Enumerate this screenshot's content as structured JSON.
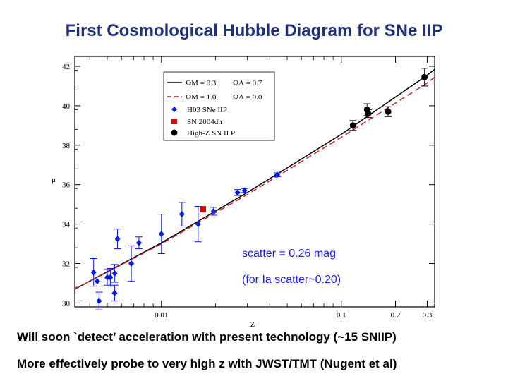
{
  "slide": {
    "title": "First Cosmological Hubble Diagram for SNe IIP",
    "bullets": [
      "Will soon `detect’ acceleration with present technology (~15 SNIIP)",
      "More effectively probe to very high z with JWST/TMT (Nugent et al)"
    ]
  },
  "chart_data": {
    "type": "scatter",
    "title": "",
    "xlabel": "z",
    "ylabel": "μ",
    "x_scale": "log",
    "xlim": [
      0.0033,
      0.33
    ],
    "ylim": [
      29.8,
      42.5
    ],
    "x_ticks": [
      0.01,
      0.1,
      0.2,
      0.3
    ],
    "y_ticks": [
      30,
      32,
      34,
      36,
      38,
      40,
      42
    ],
    "grid": false,
    "legend_position": "top-left",
    "annotations": [
      "scatter = 0.26 mag",
      "(for Ia scatter~0.20)"
    ],
    "lines": [
      {
        "label_omega_m": "ΩM = 0.3,",
        "label_omega_l": "ΩΛ = 0.7",
        "color": "#000000",
        "dash": "solid",
        "points": [
          [
            0.0033,
            30.7
          ],
          [
            0.01,
            33.05
          ],
          [
            0.03,
            35.6
          ],
          [
            0.1,
            38.55
          ],
          [
            0.3,
            41.55
          ],
          [
            0.33,
            41.85
          ]
        ]
      },
      {
        "label_omega_m": "ΩM = 1.0,",
        "label_omega_l": "ΩΛ = 0.0",
        "color": "#cc2222",
        "dash": "dashed",
        "points": [
          [
            0.0033,
            30.7
          ],
          [
            0.01,
            33.0
          ],
          [
            0.03,
            35.5
          ],
          [
            0.1,
            38.4
          ],
          [
            0.3,
            41.15
          ],
          [
            0.33,
            41.45
          ]
        ]
      }
    ],
    "series": [
      {
        "name": "H03 SNe IIP",
        "marker": "diamond",
        "color": "#0a1adf",
        "points": [
          {
            "x": 0.0042,
            "y": 31.55,
            "err": 0.7
          },
          {
            "x": 0.0044,
            "y": 31.1,
            "err": 0
          },
          {
            "x": 0.0045,
            "y": 30.1,
            "err": 0.45
          },
          {
            "x": 0.005,
            "y": 31.3,
            "err": 0.4
          },
          {
            "x": 0.0052,
            "y": 31.3,
            "err": 0.45
          },
          {
            "x": 0.0055,
            "y": 31.5,
            "err": 0.45
          },
          {
            "x": 0.0055,
            "y": 30.5,
            "err": 0.4
          },
          {
            "x": 0.0057,
            "y": 33.25,
            "err": 0.5
          },
          {
            "x": 0.0068,
            "y": 32.0,
            "err": 0.9
          },
          {
            "x": 0.0075,
            "y": 33.05,
            "err": 0.3
          },
          {
            "x": 0.01,
            "y": 33.5,
            "err": 1.0
          },
          {
            "x": 0.013,
            "y": 34.5,
            "err": 0.6
          },
          {
            "x": 0.016,
            "y": 34.0,
            "err": 0.9
          },
          {
            "x": 0.0195,
            "y": 34.65,
            "err": 0.2
          },
          {
            "x": 0.0265,
            "y": 35.6,
            "err": 0.15
          },
          {
            "x": 0.029,
            "y": 35.7,
            "err": 0.1
          },
          {
            "x": 0.044,
            "y": 36.5,
            "err": 0.1
          }
        ]
      },
      {
        "name": "SN 2004dh",
        "marker": "square",
        "color": "#cc1010",
        "points": [
          {
            "x": 0.017,
            "y": 34.75,
            "err": 0
          }
        ]
      },
      {
        "name": "High-Z SN II P",
        "marker": "circle",
        "color": "#000000",
        "points": [
          {
            "x": 0.116,
            "y": 39.0,
            "err": 0.25
          },
          {
            "x": 0.139,
            "y": 39.8,
            "err": 0.3
          },
          {
            "x": 0.141,
            "y": 39.6,
            "err": 0.2
          },
          {
            "x": 0.182,
            "y": 39.7,
            "err": 0.25
          },
          {
            "x": 0.29,
            "y": 41.45,
            "err": 0.45
          }
        ]
      }
    ]
  }
}
